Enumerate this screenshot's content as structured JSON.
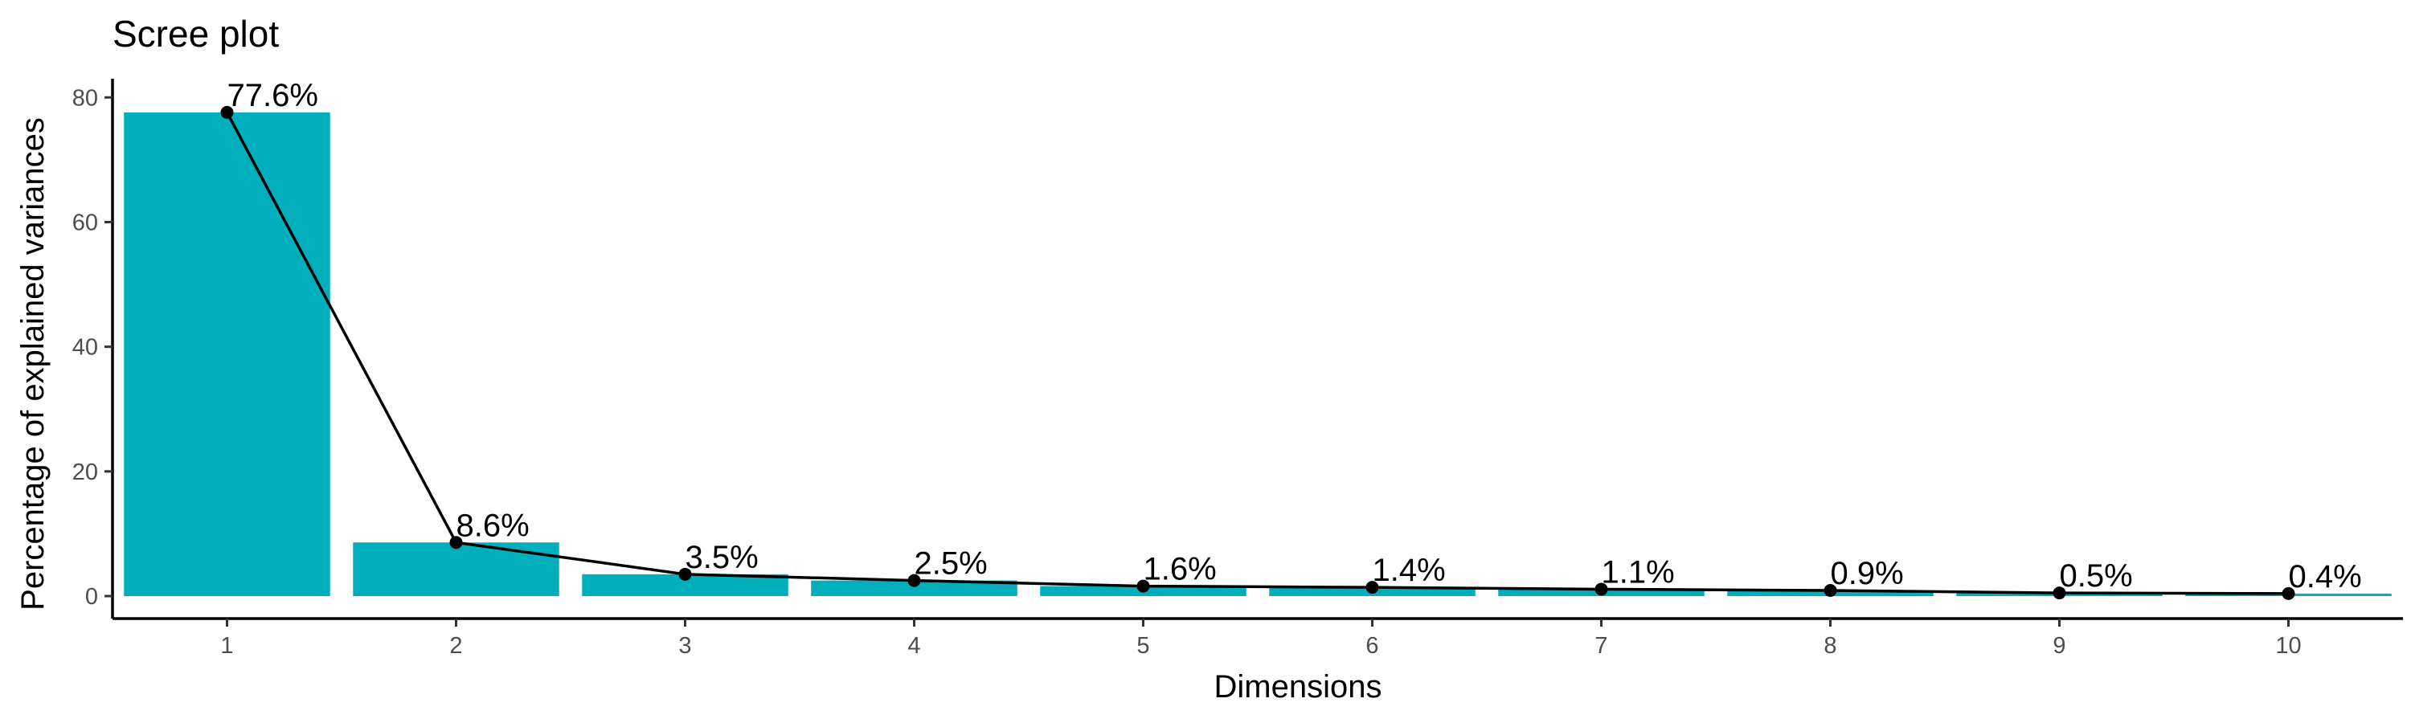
{
  "chart_data": {
    "type": "bar",
    "title": "Scree plot",
    "xlabel": "Dimensions",
    "ylabel": "Percentage of explained variances",
    "categories": [
      "1",
      "2",
      "3",
      "4",
      "5",
      "6",
      "7",
      "8",
      "9",
      "10"
    ],
    "values": [
      77.6,
      8.6,
      3.5,
      2.5,
      1.6,
      1.4,
      1.1,
      0.9,
      0.5,
      0.4
    ],
    "data_labels": [
      "77.6%",
      "8.6%",
      "3.5%",
      "2.5%",
      "1.6%",
      "1.4%",
      "1.1%",
      "0.9%",
      "0.5%",
      "0.4%"
    ],
    "ylim": [
      0,
      83
    ],
    "yticks": [
      0,
      20,
      40,
      60,
      80
    ],
    "overlay": "line-with-points",
    "grid": false,
    "colors": {
      "bar": "#00AFBB",
      "line": "#000000",
      "point": "#000000"
    }
  }
}
